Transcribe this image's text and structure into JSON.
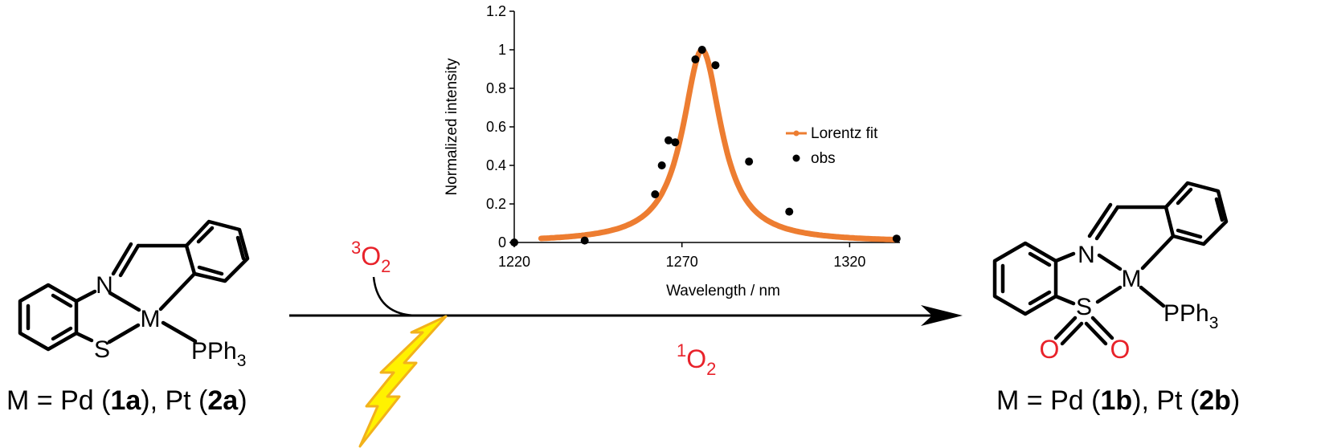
{
  "reactant": {
    "atoms": {
      "N": "N",
      "M": "M",
      "S": "S",
      "P": "PPh",
      "P_sub": "3"
    },
    "caption": {
      "prefix": "M = Pd (",
      "c1": "1a",
      "mid": "), Pt (",
      "c2": "2a",
      "suffix": ")"
    }
  },
  "product": {
    "atoms": {
      "N": "N",
      "M": "M",
      "S": "S",
      "P": "PPh",
      "P_sub": "3",
      "O1": "O",
      "O2": "O"
    },
    "caption": {
      "prefix": "M = Pd (",
      "c1": "1b",
      "mid": "), Pt (",
      "c2": "2b",
      "suffix": ")"
    }
  },
  "reagent_top": {
    "sup": "3",
    "base": "O",
    "sub": "2"
  },
  "reagent_bottom": {
    "sup": "1",
    "base": "O",
    "sub": "2"
  },
  "colors": {
    "oxygen": "#e8222a",
    "fit": "#ed7d31",
    "bolt_fill": "#fff200",
    "bolt_stroke": "#f2b21b"
  },
  "chart_data": {
    "type": "scatter",
    "xlabel": "Wavelength / nm",
    "ylabel": "Normalized  intensity",
    "xlim": [
      1220,
      1335
    ],
    "ylim": [
      0,
      1.2
    ],
    "xticks": [
      "1220",
      "1270",
      "1320"
    ],
    "yticks": [
      "0",
      "0.2",
      "0.4",
      "0.6",
      "0.8",
      "1",
      "1.2"
    ],
    "legend_position": "right",
    "series": [
      {
        "name": "Lorentz fit",
        "kind": "line",
        "color": "#ed7d31",
        "center": 1276,
        "fwhm": 14,
        "x_start": 1228,
        "x_end": 1334
      },
      {
        "name": "obs",
        "kind": "markers",
        "color": "#000000",
        "x": [
          1220,
          1241,
          1262,
          1264,
          1266,
          1268,
          1274,
          1276,
          1280,
          1290,
          1302,
          1334
        ],
        "y": [
          0,
          0.01,
          0.25,
          0.4,
          0.53,
          0.52,
          0.95,
          1.0,
          0.92,
          0.42,
          0.16,
          0.02
        ]
      }
    ]
  }
}
